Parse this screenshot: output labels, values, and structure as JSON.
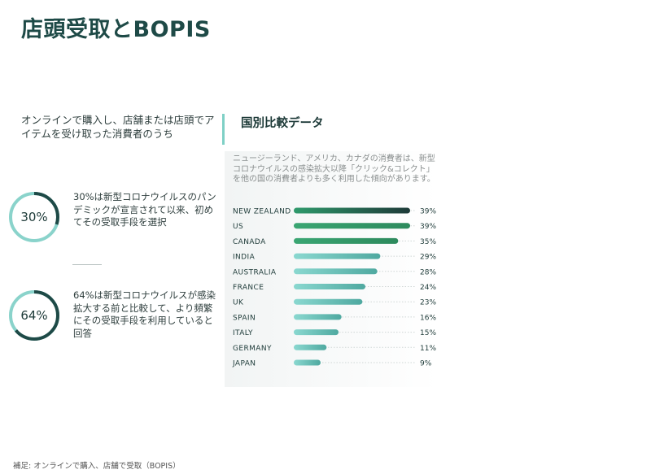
{
  "page": {
    "title": "店頭受取とBOPIS",
    "footnote": "補足: オンラインで購入、店舗で受取（BOPIS）"
  },
  "left": {
    "intro": "オンラインで購入し、店舗または店頭でアイテムを受け取った消費者のうち",
    "stats": [
      {
        "percent_label": "30%",
        "fraction": 0.3,
        "text": "30%は新型コロナウイルスのパンデミックが宣言されて以来、初めてその受取手段を選択"
      },
      {
        "percent_label": "64%",
        "fraction": 0.64,
        "text": "64%は新型コロナウイルスが感染拡大する前と比較して、より頻繁にその受取手段を利用していると回答"
      }
    ]
  },
  "right": {
    "heading": "国別比較データ",
    "description": "ニュージーランド、アメリカ、カナダの消費者は、新型コロナウイルスの感染拡大以降「クリック&コレクト」を他の国の消費者よりも多く利用した傾向があります。"
  },
  "colors": {
    "ring_track": "#8ad3cb",
    "ring_fill": "#1e4a47",
    "bar_dark_start": "#2f9a6c",
    "bar_dark_end": "#1d3a38",
    "bar_green_start": "#3aa673",
    "bar_green_end": "#2d8a5d",
    "bar_light_start": "#8ad8d0",
    "bar_light_end": "#4fa9a0",
    "dotted_track": "#cfd6d5"
  },
  "chart_data": {
    "type": "bar",
    "orientation": "horizontal",
    "categories": [
      "NEW ZEALAND",
      "US",
      "CANADA",
      "INDIA",
      "AUSTRALIA",
      "FRANCE",
      "UK",
      "SPAIN",
      "ITALY",
      "GERMANY",
      "JAPAN"
    ],
    "values": [
      39,
      39,
      35,
      29,
      28,
      24,
      23,
      16,
      15,
      11,
      9
    ],
    "value_labels": [
      "39%",
      "39%",
      "35%",
      "29%",
      "28%",
      "24%",
      "23%",
      "16%",
      "15%",
      "11%",
      "9%"
    ],
    "highlight_groups": [
      "dark",
      "green",
      "green",
      "light",
      "light",
      "light",
      "light",
      "light",
      "light",
      "light",
      "light"
    ],
    "title": "",
    "xlabel": "",
    "ylabel": "",
    "xlim": [
      0,
      39
    ]
  }
}
